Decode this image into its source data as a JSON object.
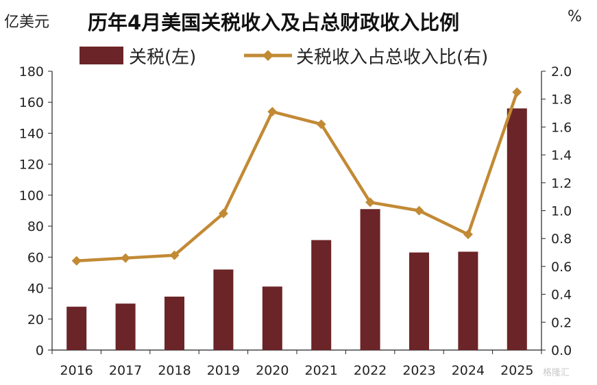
{
  "title": "历年4月美国关税收入及占总财政收入比例",
  "unit_left": "亿美元",
  "unit_right": "%",
  "watermark": "格隆汇",
  "colors": {
    "bar": "#6b2427",
    "line": "#c28a35",
    "axis": "#222222"
  },
  "chart_data": {
    "type": "bar+line",
    "categories": [
      "2016",
      "2017",
      "2018",
      "2019",
      "2020",
      "2021",
      "2022",
      "2023",
      "2024",
      "2025"
    ],
    "series": [
      {
        "name": "关税(左)",
        "type": "bar",
        "axis": "left",
        "values": [
          28,
          30,
          34.5,
          52,
          41,
          71,
          91,
          63,
          63.5,
          156
        ]
      },
      {
        "name": "关税收入占总收入比(右)",
        "type": "line",
        "axis": "right",
        "marker": "diamond",
        "values": [
          0.64,
          0.66,
          0.68,
          0.98,
          1.71,
          1.62,
          1.06,
          1.0,
          0.83,
          1.85
        ]
      }
    ],
    "yleft": {
      "min": 0,
      "max": 180,
      "step": 20,
      "ticks": [
        "0",
        "20",
        "40",
        "60",
        "80",
        "100",
        "120",
        "140",
        "160",
        "180"
      ]
    },
    "yright": {
      "min": 0,
      "max": 2.0,
      "step": 0.2,
      "ticks": [
        "0.0",
        "0.2",
        "0.4",
        "0.6",
        "0.8",
        "1.0",
        "1.2",
        "1.4",
        "1.6",
        "1.8",
        "2.0"
      ]
    },
    "legend": {
      "position": "top-center",
      "items": [
        "关税(左)",
        "关税收入占总收入比(右)"
      ]
    }
  }
}
